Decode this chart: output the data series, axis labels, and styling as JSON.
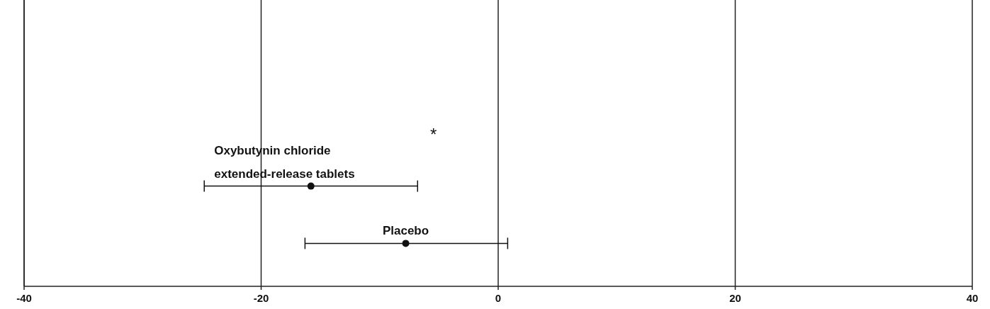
{
  "chart_data": {
    "type": "scatter",
    "orientation": "horizontal",
    "categories": [
      null,
      null,
      null,
      null,
      null,
      null,
      null,
      null,
      null,
      null
    ],
    "series": [
      {
        "name": "Oxybutynin chloride\nextended-release tablets",
        "color": "#111111",
        "values": [
          null,
          null,
          null,
          null,
          null,
          null,
          -15.8,
          null,
          null,
          null
        ],
        "errors": [
          null,
          null,
          null,
          null,
          null,
          null,
          [
            -24.8,
            -6.8
          ],
          null,
          null,
          null
        ]
      },
      {
        "name": "Placebo",
        "color": "#111111",
        "values": [
          null,
          null,
          null,
          null,
          null,
          null,
          null,
          null,
          -7.8,
          null
        ],
        "errors": [
          null,
          null,
          null,
          null,
          null,
          null,
          null,
          null,
          [
            -16.3,
            0.8
          ],
          null
        ]
      }
    ],
    "marker": "circle",
    "xlim": [
      -40,
      40
    ],
    "xticks": [
      -40,
      -20,
      0,
      20,
      40
    ],
    "grid": "x",
    "tick_labels": "x",
    "annotations": [
      "*"
    ]
  }
}
